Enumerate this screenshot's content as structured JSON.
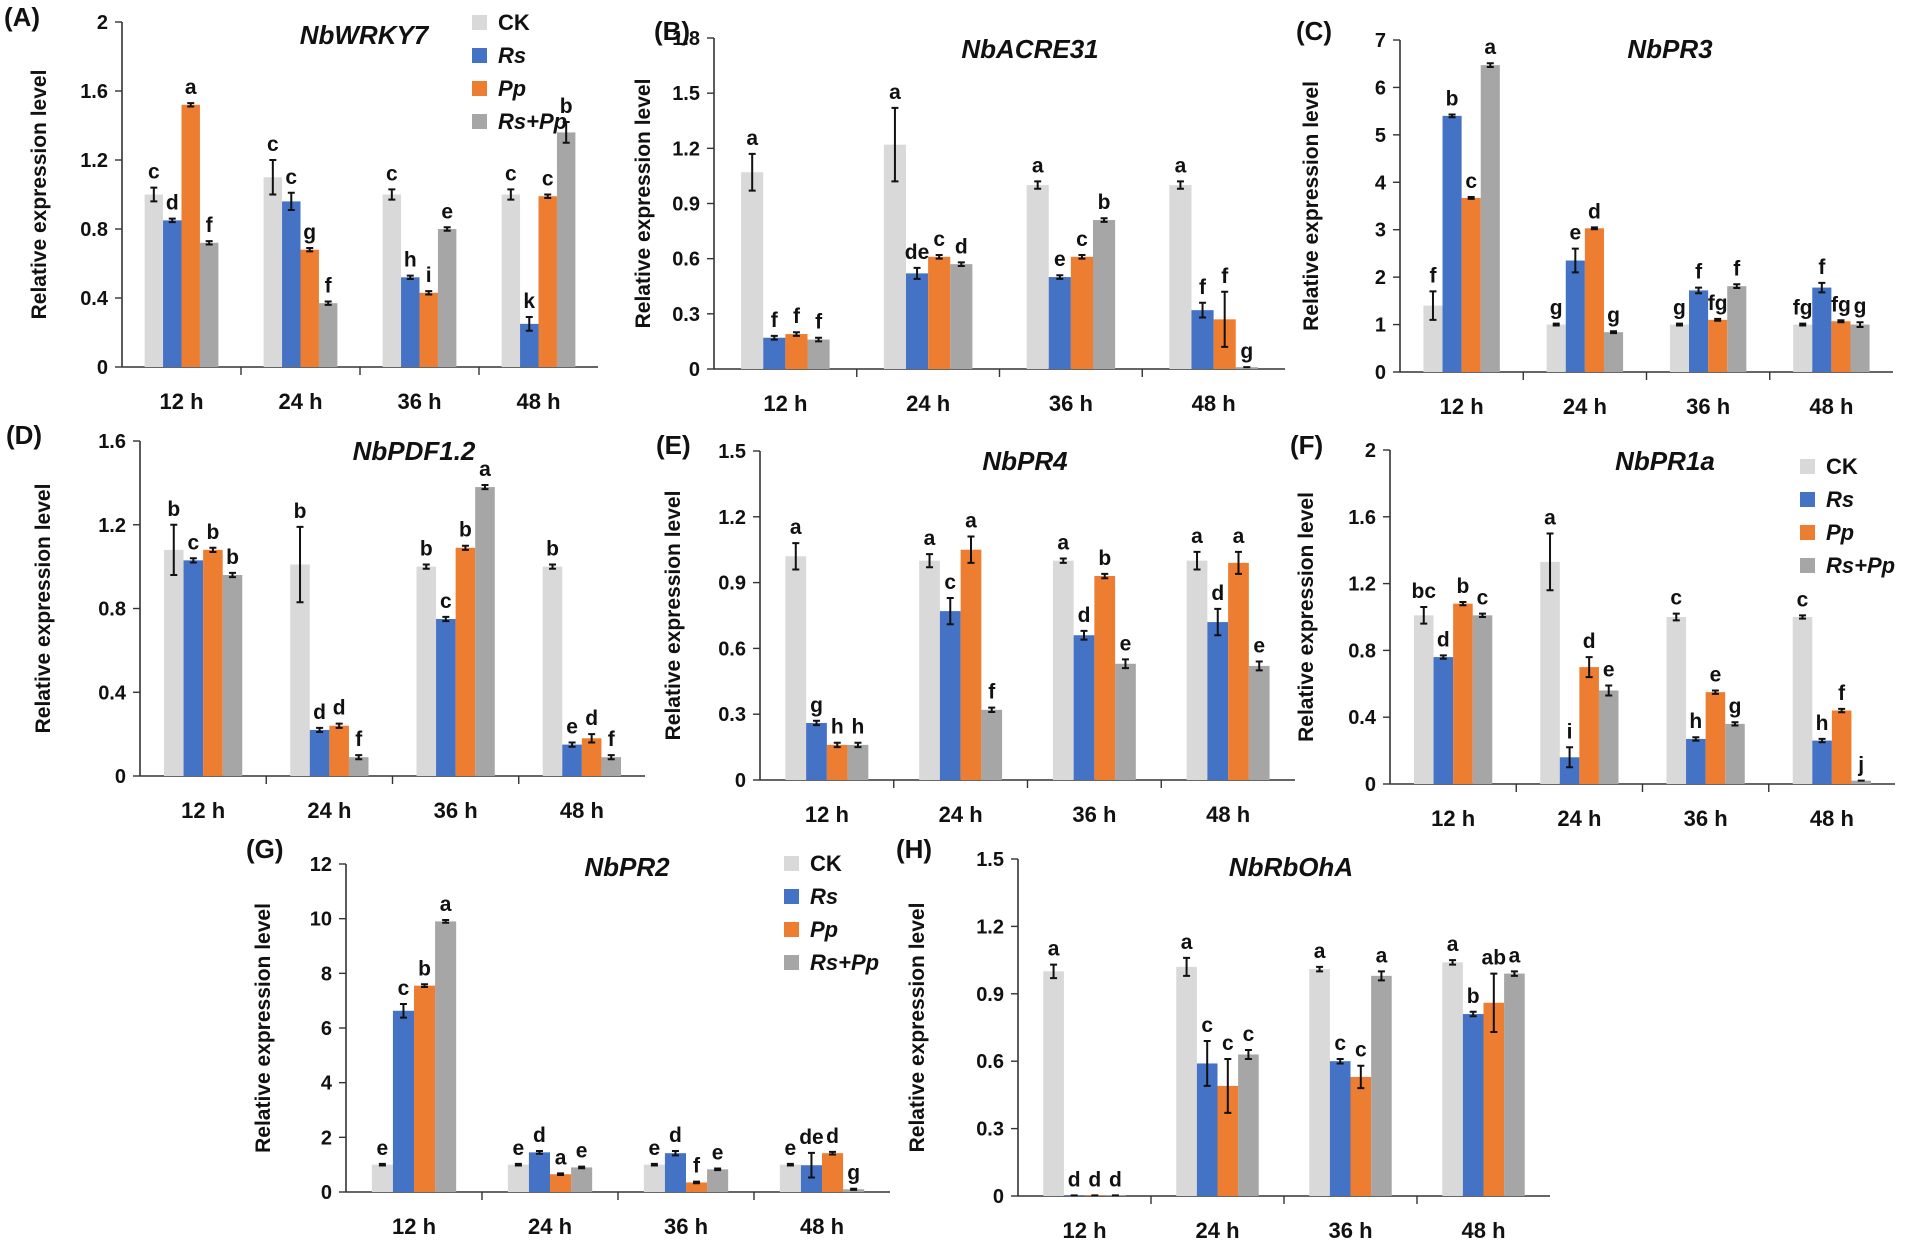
{
  "series_names": [
    "CK",
    "Rs",
    "Pp",
    "Rs+Pp"
  ],
  "series_colors": [
    "#d9d9d9",
    "#4472c4",
    "#ed7d31",
    "#a6a6a6"
  ],
  "categories": [
    "12 h",
    "24 h",
    "36 h",
    "48 h"
  ],
  "chart_data": [
    {
      "panel": "(A)",
      "title": "NbWRKY7",
      "type": "bar",
      "ylabel": "Relative expression level",
      "ylim": [
        0,
        2
      ],
      "yticks": [
        "0",
        "0.4",
        "0.8",
        "1.2",
        "1.6",
        "2"
      ],
      "categories": [
        "12 h",
        "24 h",
        "36 h",
        "48 h"
      ],
      "series": [
        {
          "name": "CK",
          "values": [
            1.0,
            1.1,
            1.0,
            1.0
          ],
          "errors": [
            0.04,
            0.1,
            0.03,
            0.03
          ],
          "letters": [
            "c",
            "c",
            "c",
            "c"
          ]
        },
        {
          "name": "Rs",
          "values": [
            0.85,
            0.96,
            0.52,
            0.25
          ],
          "errors": [
            0.01,
            0.05,
            0.01,
            0.04
          ],
          "letters": [
            "d",
            "c",
            "h",
            "k"
          ]
        },
        {
          "name": "Pp",
          "values": [
            1.52,
            0.68,
            0.43,
            0.99
          ],
          "errors": [
            0.01,
            0.01,
            0.01,
            0.01
          ],
          "letters": [
            "a",
            "g",
            "i",
            "c"
          ]
        },
        {
          "name": "Rs+Pp",
          "values": [
            0.72,
            0.37,
            0.8,
            1.36
          ],
          "errors": [
            0.01,
            0.01,
            0.01,
            0.06
          ],
          "letters": [
            "f",
            "f",
            "e",
            "b"
          ]
        }
      ],
      "legend": true
    },
    {
      "panel": "(B)",
      "title": "NbACRE31",
      "type": "bar",
      "ylabel": "Relative expression level",
      "ylim": [
        0,
        1.8
      ],
      "yticks": [
        "0",
        "0.3",
        "0.6",
        "0.9",
        "1.2",
        "1.5",
        "1.8"
      ],
      "categories": [
        "12 h",
        "24 h",
        "36 h",
        "48 h"
      ],
      "series": [
        {
          "name": "CK",
          "values": [
            1.07,
            1.22,
            1.0,
            1.0
          ],
          "errors": [
            0.1,
            0.2,
            0.02,
            0.02
          ],
          "letters": [
            "a",
            "a",
            "a",
            "a"
          ]
        },
        {
          "name": "Rs",
          "values": [
            0.17,
            0.52,
            0.5,
            0.32
          ],
          "errors": [
            0.01,
            0.03,
            0.01,
            0.04
          ],
          "letters": [
            "f",
            "de",
            "e",
            "f"
          ]
        },
        {
          "name": "Pp",
          "values": [
            0.19,
            0.61,
            0.61,
            0.27
          ],
          "errors": [
            0.01,
            0.01,
            0.01,
            0.15
          ],
          "letters": [
            "f",
            "c",
            "c",
            "f"
          ]
        },
        {
          "name": "Rs+Pp",
          "values": [
            0.16,
            0.57,
            0.81,
            0.01
          ],
          "errors": [
            0.01,
            0.01,
            0.01,
            0.0
          ],
          "letters": [
            "f",
            "d",
            "b",
            "g"
          ]
        }
      ],
      "legend": false
    },
    {
      "panel": "(C)",
      "title": "NbPR3",
      "type": "bar",
      "ylabel": "Relative expression level",
      "ylim": [
        0,
        7
      ],
      "yticks": [
        "0",
        "1",
        "2",
        "3",
        "4",
        "5",
        "6",
        "7"
      ],
      "categories": [
        "12 h",
        "24 h",
        "36 h",
        "48 h"
      ],
      "series": [
        {
          "name": "CK",
          "values": [
            1.4,
            1.0,
            1.0,
            1.0
          ],
          "errors": [
            0.3,
            0.02,
            0.02,
            0.02
          ],
          "letters": [
            "f",
            "g",
            "g",
            "fg"
          ]
        },
        {
          "name": "Rs",
          "values": [
            5.4,
            2.35,
            1.72,
            1.78
          ],
          "errors": [
            0.03,
            0.25,
            0.06,
            0.1
          ],
          "letters": [
            "b",
            "e",
            "f",
            "f"
          ]
        },
        {
          "name": "Pp",
          "values": [
            3.67,
            3.03,
            1.1,
            1.07
          ],
          "errors": [
            0.02,
            0.02,
            0.02,
            0.02
          ],
          "letters": [
            "c",
            "d",
            "fg",
            "fg"
          ]
        },
        {
          "name": "Rs+Pp",
          "values": [
            6.47,
            0.84,
            1.81,
            1.0
          ],
          "errors": [
            0.04,
            0.02,
            0.04,
            0.05
          ],
          "letters": [
            "a",
            "g",
            "f",
            "g"
          ]
        }
      ],
      "legend": false
    },
    {
      "panel": "(D)",
      "title": "NbPDF1.2",
      "type": "bar",
      "ylabel": "Relative expression level",
      "ylim": [
        0,
        1.6
      ],
      "yticks": [
        "0",
        "0.4",
        "0.8",
        "1.2",
        "1.6"
      ],
      "categories": [
        "12 h",
        "24 h",
        "36 h",
        "48 h"
      ],
      "series": [
        {
          "name": "CK",
          "values": [
            1.08,
            1.01,
            1.0,
            1.0
          ],
          "errors": [
            0.12,
            0.18,
            0.01,
            0.01
          ],
          "letters": [
            "b",
            "b",
            "b",
            "b"
          ]
        },
        {
          "name": "Rs",
          "values": [
            1.03,
            0.22,
            0.75,
            0.15
          ],
          "errors": [
            0.01,
            0.01,
            0.01,
            0.01
          ],
          "letters": [
            "c",
            "d",
            "c",
            "e"
          ]
        },
        {
          "name": "Pp",
          "values": [
            1.08,
            0.24,
            1.09,
            0.18
          ],
          "errors": [
            0.01,
            0.01,
            0.01,
            0.02
          ],
          "letters": [
            "b",
            "d",
            "b",
            "d"
          ]
        },
        {
          "name": "Rs+Pp",
          "values": [
            0.96,
            0.09,
            1.38,
            0.09
          ],
          "errors": [
            0.01,
            0.01,
            0.01,
            0.01
          ],
          "letters": [
            "b",
            "f",
            "a",
            "f"
          ]
        }
      ],
      "legend": false
    },
    {
      "panel": "(E)",
      "title": "NbPR4",
      "type": "bar",
      "ylabel": "Relative expression level",
      "ylim": [
        0,
        1.5
      ],
      "yticks": [
        "0",
        "0.3",
        "0.6",
        "0.9",
        "1.2",
        "1.5"
      ],
      "categories": [
        "12 h",
        "24 h",
        "36 h",
        "48 h"
      ],
      "series": [
        {
          "name": "CK",
          "values": [
            1.02,
            1.0,
            1.0,
            1.0
          ],
          "errors": [
            0.06,
            0.03,
            0.01,
            0.04
          ],
          "letters": [
            "a",
            "a",
            "a",
            "a"
          ]
        },
        {
          "name": "Rs",
          "values": [
            0.26,
            0.77,
            0.66,
            0.72
          ],
          "errors": [
            0.01,
            0.06,
            0.02,
            0.06
          ],
          "letters": [
            "g",
            "c",
            "d",
            "d"
          ]
        },
        {
          "name": "Pp",
          "values": [
            0.16,
            1.05,
            0.93,
            0.99
          ],
          "errors": [
            0.01,
            0.06,
            0.01,
            0.05
          ],
          "letters": [
            "h",
            "a",
            "b",
            "a"
          ]
        },
        {
          "name": "Rs+Pp",
          "values": [
            0.16,
            0.32,
            0.53,
            0.52
          ],
          "errors": [
            0.01,
            0.01,
            0.02,
            0.02
          ],
          "letters": [
            "h",
            "f",
            "e",
            "e"
          ]
        }
      ],
      "legend": false
    },
    {
      "panel": "(F)",
      "title": "NbPR1a",
      "type": "bar",
      "ylabel": "Relative expression level",
      "ylim": [
        0,
        2
      ],
      "yticks": [
        "0",
        "0.4",
        "0.8",
        "1.2",
        "1.6",
        "2"
      ],
      "categories": [
        "12 h",
        "24 h",
        "36 h",
        "48 h"
      ],
      "series": [
        {
          "name": "CK",
          "values": [
            1.01,
            1.33,
            1.0,
            1.0
          ],
          "errors": [
            0.05,
            0.17,
            0.02,
            0.01
          ],
          "letters": [
            "bc",
            "a",
            "c",
            "c"
          ]
        },
        {
          "name": "Rs",
          "values": [
            0.76,
            0.16,
            0.27,
            0.26
          ],
          "errors": [
            0.01,
            0.06,
            0.01,
            0.01
          ],
          "letters": [
            "d",
            "i",
            "h",
            "h"
          ]
        },
        {
          "name": "Pp",
          "values": [
            1.08,
            0.7,
            0.55,
            0.44
          ],
          "errors": [
            0.01,
            0.06,
            0.01,
            0.01
          ],
          "letters": [
            "b",
            "d",
            "e",
            "f"
          ]
        },
        {
          "name": "Rs+Pp",
          "values": [
            1.01,
            0.56,
            0.36,
            0.02
          ],
          "errors": [
            0.01,
            0.03,
            0.01,
            0.0
          ],
          "letters": [
            "c",
            "e",
            "g",
            "j"
          ]
        }
      ],
      "legend": true
    },
    {
      "panel": "(G)",
      "title": "NbPR2",
      "type": "bar",
      "ylabel": "Relative expression level",
      "ylim": [
        0,
        12
      ],
      "yticks": [
        "0",
        "2",
        "4",
        "6",
        "8",
        "10",
        "12"
      ],
      "categories": [
        "12 h",
        "24 h",
        "36 h",
        "48 h"
      ],
      "series": [
        {
          "name": "CK",
          "values": [
            1.0,
            1.0,
            1.0,
            1.0
          ],
          "errors": [
            0.03,
            0.03,
            0.03,
            0.03
          ],
          "letters": [
            "e",
            "e",
            "e",
            "e"
          ]
        },
        {
          "name": "Rs",
          "values": [
            6.63,
            1.45,
            1.42,
            0.98
          ],
          "errors": [
            0.25,
            0.05,
            0.08,
            0.45
          ],
          "letters": [
            "c",
            "d",
            "d",
            "de"
          ]
        },
        {
          "name": "Pp",
          "values": [
            7.55,
            0.65,
            0.35,
            1.42
          ],
          "errors": [
            0.05,
            0.03,
            0.03,
            0.05
          ],
          "letters": [
            "b",
            "a",
            "f",
            "d"
          ]
        },
        {
          "name": "Rs+Pp",
          "values": [
            9.9,
            0.9,
            0.83,
            0.1
          ],
          "errors": [
            0.05,
            0.03,
            0.03,
            0.02
          ],
          "letters": [
            "a",
            "e",
            "e",
            "g"
          ]
        }
      ],
      "legend": true
    },
    {
      "panel": "(H)",
      "title": "NbRbOhA",
      "type": "bar",
      "ylabel": "Relative expression level",
      "ylim": [
        0,
        1.5
      ],
      "yticks": [
        "0",
        "0.3",
        "0.6",
        "0.9",
        "1.2",
        "1.5"
      ],
      "categories": [
        "12 h",
        "24 h",
        "36 h",
        "48 h"
      ],
      "series": [
        {
          "name": "CK",
          "values": [
            1.0,
            1.02,
            1.01,
            1.04
          ],
          "errors": [
            0.03,
            0.04,
            0.01,
            0.01
          ],
          "letters": [
            "a",
            "a",
            "a",
            "a"
          ]
        },
        {
          "name": "Rs",
          "values": [
            0.003,
            0.59,
            0.6,
            0.81
          ],
          "errors": [
            0.0,
            0.1,
            0.01,
            0.01
          ],
          "letters": [
            "d",
            "c",
            "c",
            "b"
          ]
        },
        {
          "name": "Pp",
          "values": [
            0.003,
            0.49,
            0.53,
            0.86
          ],
          "errors": [
            0.0,
            0.12,
            0.05,
            0.13
          ],
          "letters": [
            "d",
            "c",
            "c",
            "ab"
          ]
        },
        {
          "name": "Rs+Pp",
          "values": [
            0.003,
            0.63,
            0.98,
            0.99
          ],
          "errors": [
            0.0,
            0.02,
            0.02,
            0.01
          ],
          "letters": [
            "d",
            "c",
            "a",
            "a"
          ]
        }
      ],
      "legend": false
    }
  ]
}
